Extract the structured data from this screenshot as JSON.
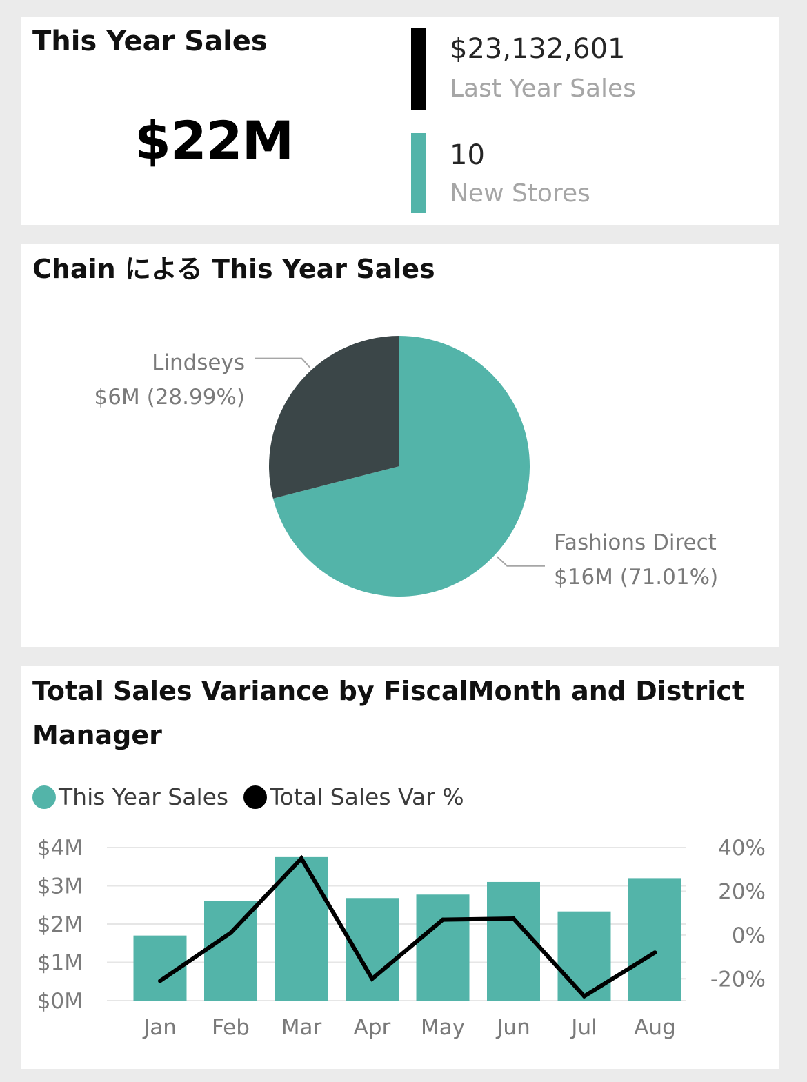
{
  "kpi": {
    "title": "This Year Sales",
    "value": "$22M",
    "last_year_value": "$23,132,601",
    "last_year_label": "Last Year Sales",
    "new_stores_value": "10",
    "new_stores_label": "New Stores"
  },
  "colors": {
    "teal": "#53b4a9",
    "dark": "#3b4648",
    "black": "#000000"
  },
  "chart_data": [
    {
      "type": "pie",
      "title": "Chain による This Year Sales",
      "slices": [
        {
          "name": "Fashions Direct",
          "value_label": "$16M (71.01%)",
          "percent": 71.01,
          "color": "#53b4a9"
        },
        {
          "name": "Lindseys",
          "value_label": "$6M (28.99%)",
          "percent": 28.99,
          "color": "#3b4648"
        }
      ]
    },
    {
      "type": "bar",
      "title": "Total Sales Variance by FiscalMonth and District Manager",
      "legend": [
        {
          "name": "This Year Sales",
          "color": "#53b4a9"
        },
        {
          "name": "Total Sales Var %",
          "color": "#000000"
        }
      ],
      "categories": [
        "Jan",
        "Feb",
        "Mar",
        "Apr",
        "May",
        "Jun",
        "Jul",
        "Aug"
      ],
      "series": [
        {
          "name": "This Year Sales",
          "kind": "bar",
          "axis": "left",
          "values": [
            1.7,
            2.6,
            3.75,
            2.68,
            2.77,
            3.1,
            2.33,
            3.2
          ]
        },
        {
          "name": "Total Sales Var %",
          "kind": "line",
          "axis": "right",
          "values": [
            -21,
            1,
            35,
            -20,
            7,
            7.5,
            -28,
            -8
          ]
        }
      ],
      "y_left": {
        "min": 0,
        "max": 4,
        "ticks": [
          0,
          1,
          2,
          3,
          4
        ],
        "tick_labels": [
          "$0M",
          "$1M",
          "$2M",
          "$3M",
          "$4M"
        ]
      },
      "y_right": {
        "min": -30,
        "max": 40,
        "ticks": [
          -20,
          0,
          20,
          40
        ],
        "tick_labels": [
          "-20%",
          "0%",
          "20%",
          "40%"
        ]
      },
      "grid": true,
      "legend_position": "top-left"
    }
  ]
}
